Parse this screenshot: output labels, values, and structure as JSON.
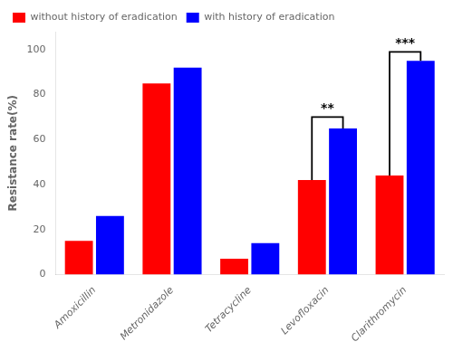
{
  "chart_data": {
    "type": "bar",
    "ylabel": "Resistance rate(%)",
    "categories": [
      "Amoxicillin",
      "Metronidazole",
      "Tetracycline",
      "Levofloxacin",
      "Clarithromycin"
    ],
    "series": [
      {
        "name": "without history of eradication",
        "color": "#FF0000",
        "values": [
          15,
          85,
          7,
          42,
          44
        ]
      },
      {
        "name": "with history of eradication",
        "color": "#0000FF",
        "values": [
          26,
          92,
          14,
          65,
          95
        ]
      }
    ],
    "ylim": [
      0,
      108
    ],
    "yticks": [
      0,
      20,
      40,
      60,
      80,
      100
    ],
    "grid": false,
    "legend": "upper left",
    "annotations": [
      {
        "text": "**",
        "category": "Levofloxacin",
        "y_bracket": 70,
        "y_text": 71
      },
      {
        "text": "***",
        "category": "Clarithromycin",
        "y_bracket": 99,
        "y_text": 100
      }
    ]
  }
}
